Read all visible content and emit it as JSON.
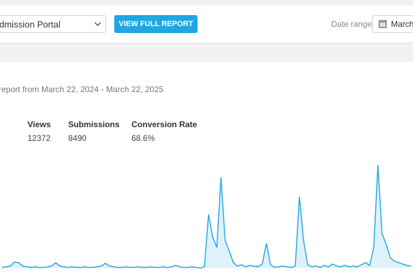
{
  "toolbar": {
    "form_select": "dmission Portal",
    "button": "VIEW FULL REPORT",
    "date_label": "Date range",
    "date_value": "March"
  },
  "report": {
    "heading": "report from March 22, 2024 - March 22, 2025",
    "stats": [
      {
        "label": "Views",
        "value": "12372"
      },
      {
        "label": "Submissions",
        "value": "8490"
      },
      {
        "label": "Conversion Rate",
        "value": "68.6%"
      }
    ]
  },
  "chart_data": {
    "type": "area",
    "color": "#29a8e0",
    "ylim": [
      0,
      160
    ],
    "values": [
      1,
      2,
      3,
      9,
      8,
      3,
      2,
      1,
      2,
      1,
      1,
      2,
      3,
      8,
      3,
      2,
      1,
      2,
      1,
      1,
      2,
      1,
      1,
      2,
      3,
      7,
      3,
      2,
      1,
      1,
      2,
      1,
      1,
      2,
      1,
      1,
      2,
      1,
      1,
      2,
      1,
      2,
      4,
      2,
      1,
      1,
      2,
      1,
      0,
      2,
      78,
      45,
      30,
      132,
      40,
      25,
      8,
      3,
      5,
      2,
      4,
      3,
      2,
      6,
      36,
      5,
      1,
      2,
      3,
      2,
      1,
      3,
      104,
      40,
      5,
      2,
      3,
      1,
      4,
      2,
      6,
      3,
      2,
      4,
      2,
      3,
      2,
      5,
      8,
      4,
      30,
      150,
      50,
      35,
      15,
      10,
      8,
      6,
      4,
      3
    ]
  }
}
